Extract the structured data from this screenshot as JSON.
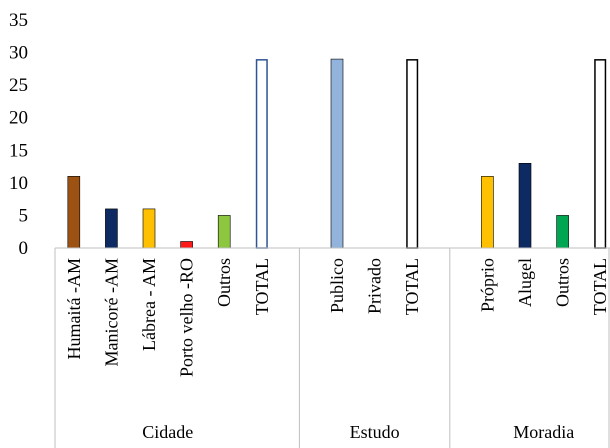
{
  "chart_data": {
    "type": "bar",
    "ylim": [
      0,
      35
    ],
    "yticks": [
      0,
      5,
      10,
      15,
      20,
      25,
      30,
      35
    ],
    "grid": false,
    "groups": [
      {
        "name": "Cidade",
        "bars": [
          {
            "label": "Humaitá -AM",
            "value": 11,
            "color": "#9c5213",
            "hollow": false
          },
          {
            "label": "Manicoré -AM",
            "value": 6,
            "color": "#0d2a63",
            "hollow": false
          },
          {
            "label": "Lábrea - AM",
            "value": 6,
            "color": "#ffc000",
            "hollow": false
          },
          {
            "label": "Porto velho -RO",
            "value": 1,
            "color": "#ff1a1a",
            "hollow": false
          },
          {
            "label": "Outros",
            "value": 5,
            "color": "#8dc63f",
            "hollow": false
          },
          {
            "label": "TOTAL",
            "value": 29,
            "color": "#2e5496",
            "hollow": true
          }
        ]
      },
      {
        "name": "Estudo",
        "bars": [
          {
            "label": "Publico",
            "value": 29,
            "color": "#92b4dc",
            "hollow": false
          },
          {
            "label": "Privado",
            "value": 0,
            "color": "#92b4dc",
            "hollow": false
          },
          {
            "label": "TOTAL",
            "value": 29,
            "color": "#000000",
            "hollow": true
          }
        ]
      },
      {
        "name": "Moradia",
        "bars": [
          {
            "label": "Próprio",
            "value": 11,
            "color": "#ffc000",
            "hollow": false
          },
          {
            "label": "Alugel",
            "value": 13,
            "color": "#0d2a63",
            "hollow": false
          },
          {
            "label": "Outros",
            "value": 5,
            "color": "#00a651",
            "hollow": false
          },
          {
            "label": "TOTAL",
            "value": 29,
            "color": "#000000",
            "hollow": true
          }
        ]
      }
    ]
  }
}
